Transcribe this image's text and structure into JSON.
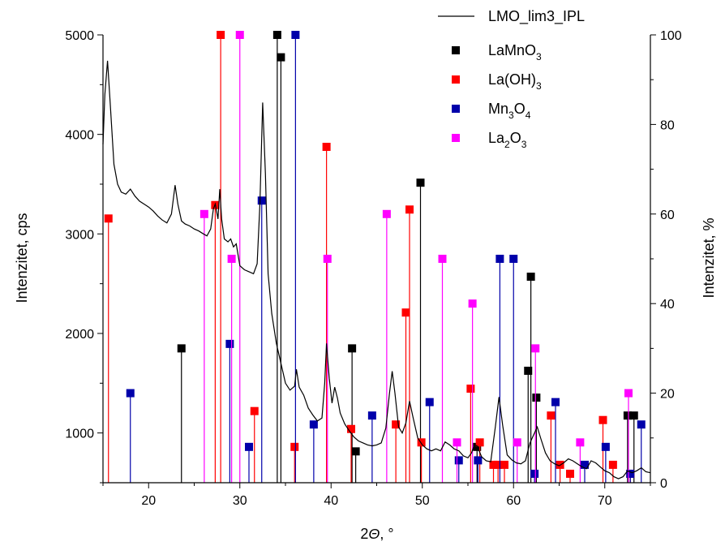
{
  "chart_data": {
    "type": "line",
    "xlabel": "2Θ, °",
    "ylabel_left": "Intenzitet, cps",
    "ylabel_right": "Intenzitet, %",
    "xlim": [
      15,
      75
    ],
    "ylim_left": [
      500,
      5000
    ],
    "ylim_right": [
      0,
      100
    ],
    "x_ticks": [
      20,
      30,
      40,
      50,
      60,
      70
    ],
    "y_left_ticks": [
      1000,
      2000,
      3000,
      4000,
      5000
    ],
    "y_right_ticks": [
      0,
      20,
      40,
      60,
      80,
      100
    ],
    "grid": false,
    "legend_position": "top-right",
    "pattern": {
      "name": "LMO_lim3_IPL",
      "color": "#000000",
      "points": [
        [
          15.0,
          3900
        ],
        [
          15.2,
          4400
        ],
        [
          15.5,
          4740
        ],
        [
          15.8,
          4300
        ],
        [
          16.2,
          3700
        ],
        [
          16.6,
          3500
        ],
        [
          17.0,
          3420
        ],
        [
          17.5,
          3400
        ],
        [
          18.0,
          3450
        ],
        [
          18.5,
          3380
        ],
        [
          19.0,
          3330
        ],
        [
          19.5,
          3300
        ],
        [
          20.0,
          3270
        ],
        [
          20.5,
          3230
        ],
        [
          21.0,
          3180
        ],
        [
          21.5,
          3140
        ],
        [
          22.0,
          3110
        ],
        [
          22.5,
          3200
        ],
        [
          22.9,
          3490
        ],
        [
          23.2,
          3300
        ],
        [
          23.6,
          3130
        ],
        [
          24.0,
          3100
        ],
        [
          24.5,
          3080
        ],
        [
          25.0,
          3050
        ],
        [
          25.5,
          3030
        ],
        [
          26.0,
          3000
        ],
        [
          26.4,
          2980
        ],
        [
          26.8,
          3050
        ],
        [
          27.1,
          3250
        ],
        [
          27.3,
          3300
        ],
        [
          27.6,
          3150
        ],
        [
          27.8,
          3450
        ],
        [
          28.0,
          3150
        ],
        [
          28.3,
          2950
        ],
        [
          28.7,
          2920
        ],
        [
          29.0,
          2950
        ],
        [
          29.3,
          2870
        ],
        [
          29.6,
          2900
        ],
        [
          30.0,
          2680
        ],
        [
          30.5,
          2640
        ],
        [
          31.0,
          2620
        ],
        [
          31.5,
          2600
        ],
        [
          31.9,
          2700
        ],
        [
          32.2,
          3300
        ],
        [
          32.5,
          4320
        ],
        [
          32.8,
          3600
        ],
        [
          33.1,
          2600
        ],
        [
          33.5,
          2200
        ],
        [
          34.0,
          1900
        ],
        [
          34.5,
          1700
        ],
        [
          35.0,
          1500
        ],
        [
          35.5,
          1430
        ],
        [
          36.0,
          1470
        ],
        [
          36.2,
          1640
        ],
        [
          36.5,
          1460
        ],
        [
          37.0,
          1380
        ],
        [
          37.5,
          1250
        ],
        [
          38.0,
          1180
        ],
        [
          38.5,
          1120
        ],
        [
          39.0,
          1150
        ],
        [
          39.3,
          1500
        ],
        [
          39.5,
          1900
        ],
        [
          39.8,
          1550
        ],
        [
          40.1,
          1300
        ],
        [
          40.4,
          1460
        ],
        [
          40.7,
          1350
        ],
        [
          41.0,
          1200
        ],
        [
          41.5,
          1090
        ],
        [
          42.0,
          1020
        ],
        [
          42.5,
          960
        ],
        [
          43.0,
          920
        ],
        [
          43.5,
          900
        ],
        [
          44.0,
          880
        ],
        [
          44.5,
          870
        ],
        [
          45.0,
          880
        ],
        [
          45.5,
          900
        ],
        [
          46.0,
          1050
        ],
        [
          46.4,
          1400
        ],
        [
          46.7,
          1620
        ],
        [
          47.0,
          1400
        ],
        [
          47.4,
          1060
        ],
        [
          47.8,
          1000
        ],
        [
          48.2,
          1100
        ],
        [
          48.6,
          1320
        ],
        [
          49.0,
          1150
        ],
        [
          49.5,
          950
        ],
        [
          50.0,
          880
        ],
        [
          50.5,
          840
        ],
        [
          51.0,
          820
        ],
        [
          51.5,
          840
        ],
        [
          52.0,
          820
        ],
        [
          52.5,
          910
        ],
        [
          53.0,
          880
        ],
        [
          53.5,
          840
        ],
        [
          54.0,
          820
        ],
        [
          54.5,
          770
        ],
        [
          55.0,
          750
        ],
        [
          55.4,
          800
        ],
        [
          55.7,
          880
        ],
        [
          56.0,
          870
        ],
        [
          56.5,
          760
        ],
        [
          57.0,
          720
        ],
        [
          57.5,
          710
        ],
        [
          58.0,
          1060
        ],
        [
          58.4,
          1360
        ],
        [
          58.8,
          1080
        ],
        [
          59.3,
          780
        ],
        [
          59.8,
          730
        ],
        [
          60.3,
          700
        ],
        [
          60.8,
          690
        ],
        [
          61.3,
          720
        ],
        [
          61.8,
          900
        ],
        [
          62.2,
          980
        ],
        [
          62.6,
          1060
        ],
        [
          63.0,
          940
        ],
        [
          63.5,
          800
        ],
        [
          64.0,
          720
        ],
        [
          64.5,
          690
        ],
        [
          65.0,
          670
        ],
        [
          65.5,
          700
        ],
        [
          66.0,
          740
        ],
        [
          66.5,
          720
        ],
        [
          67.0,
          690
        ],
        [
          67.5,
          660
        ],
        [
          68.0,
          640
        ],
        [
          68.5,
          720
        ],
        [
          69.0,
          700
        ],
        [
          69.5,
          660
        ],
        [
          70.0,
          620
        ],
        [
          70.5,
          600
        ],
        [
          71.0,
          560
        ],
        [
          71.5,
          540
        ],
        [
          72.0,
          560
        ],
        [
          72.5,
          620
        ],
        [
          73.0,
          600
        ],
        [
          73.5,
          620
        ],
        [
          74.0,
          650
        ],
        [
          74.5,
          610
        ],
        [
          75.0,
          600
        ]
      ]
    },
    "reference_series": [
      {
        "name_main": "LaMnO",
        "name_sub": "3",
        "color": "#000000",
        "peaks": [
          [
            23.6,
            30
          ],
          [
            34.1,
            100
          ],
          [
            34.5,
            95
          ],
          [
            42.3,
            30
          ],
          [
            42.7,
            7
          ],
          [
            49.8,
            67
          ],
          [
            56.0,
            8
          ],
          [
            61.6,
            25
          ],
          [
            61.9,
            46
          ],
          [
            62.5,
            19
          ],
          [
            72.5,
            15
          ],
          [
            73.2,
            15
          ]
        ]
      },
      {
        "name_main": "La(OH)",
        "name_sub": "3",
        "color": "#ff0000",
        "peaks": [
          [
            15.6,
            59
          ],
          [
            27.3,
            62
          ],
          [
            27.9,
            100
          ],
          [
            31.6,
            16
          ],
          [
            36.0,
            8
          ],
          [
            39.5,
            75
          ],
          [
            42.2,
            12
          ],
          [
            47.1,
            13
          ],
          [
            48.2,
            38
          ],
          [
            48.6,
            61
          ],
          [
            49.9,
            9
          ],
          [
            55.3,
            21
          ],
          [
            56.3,
            9
          ],
          [
            57.8,
            4
          ],
          [
            58.3,
            4
          ],
          [
            59.0,
            4
          ],
          [
            64.1,
            15
          ],
          [
            65.1,
            4
          ],
          [
            66.2,
            2
          ],
          [
            69.8,
            14
          ],
          [
            70.9,
            4
          ],
          [
            72.8,
            2
          ]
        ]
      },
      {
        "name_main": "Mn",
        "name_sub": "3",
        "name_main2": "O",
        "name_sub2": "4",
        "color": "#0000aa",
        "peaks": [
          [
            18.0,
            20
          ],
          [
            28.9,
            31
          ],
          [
            31.0,
            8
          ],
          [
            32.4,
            63
          ],
          [
            36.1,
            100
          ],
          [
            38.1,
            13
          ],
          [
            44.5,
            15
          ],
          [
            50.8,
            18
          ],
          [
            54.0,
            5
          ],
          [
            56.1,
            5
          ],
          [
            58.5,
            50
          ],
          [
            60.0,
            50
          ],
          [
            62.3,
            2
          ],
          [
            64.6,
            18
          ],
          [
            67.8,
            4
          ],
          [
            70.1,
            8
          ],
          [
            72.8,
            2
          ],
          [
            74.0,
            13
          ]
        ]
      },
      {
        "name_main": "La",
        "name_sub": "2",
        "name_main2": "O",
        "name_sub2": "3",
        "color": "#ff00ff",
        "peaks": [
          [
            26.1,
            60
          ],
          [
            29.1,
            50
          ],
          [
            30.0,
            100
          ],
          [
            39.6,
            50
          ],
          [
            46.1,
            60
          ],
          [
            52.2,
            50
          ],
          [
            53.8,
            9
          ],
          [
            55.5,
            40
          ],
          [
            60.4,
            9
          ],
          [
            62.4,
            30
          ],
          [
            67.3,
            9
          ],
          [
            72.6,
            20
          ]
        ]
      }
    ]
  }
}
